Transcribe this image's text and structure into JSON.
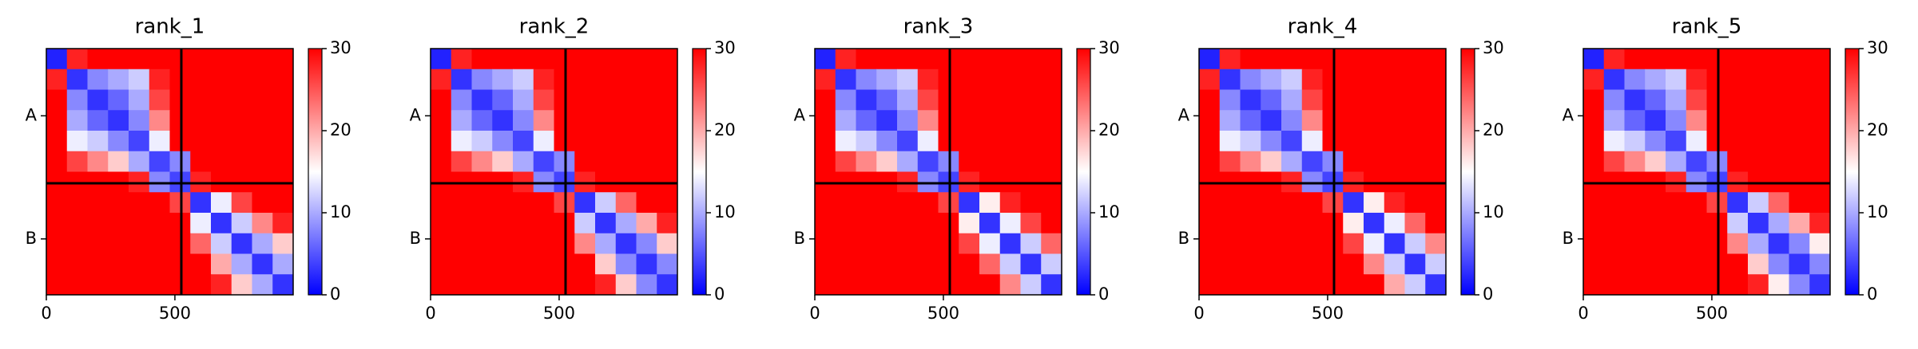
{
  "chart_data": [
    {
      "type": "heatmap",
      "title": "rank_1",
      "xlim": [
        0,
        960
      ],
      "ylim": [
        960,
        0
      ],
      "xticks": [
        0,
        500
      ],
      "yticks": [
        {
          "value": 262,
          "label": "A"
        },
        {
          "value": 742,
          "label": "B"
        }
      ],
      "chain_breaks": [
        525
      ],
      "clim": [
        0,
        30
      ],
      "cticks": [
        0,
        10,
        20,
        30
      ],
      "colormap": [
        "#0000ff",
        "#ffffff",
        "#ff0000"
      ],
      "z": [
        [
          2,
          28,
          30,
          30,
          30,
          30,
          30,
          30,
          30,
          30,
          30,
          30
        ],
        [
          28,
          3,
          8,
          10,
          12,
          28,
          30,
          30,
          30,
          30,
          30,
          30
        ],
        [
          30,
          8,
          3,
          6,
          10,
          26,
          30,
          30,
          30,
          30,
          30,
          30
        ],
        [
          30,
          10,
          6,
          3,
          8,
          22,
          30,
          30,
          30,
          30,
          30,
          30
        ],
        [
          30,
          14,
          12,
          8,
          4,
          14,
          30,
          30,
          30,
          30,
          30,
          30
        ],
        [
          30,
          26,
          22,
          18,
          10,
          4,
          8,
          30,
          30,
          30,
          30,
          30
        ],
        [
          30,
          30,
          30,
          30,
          28,
          8,
          4,
          28,
          30,
          30,
          30,
          30
        ],
        [
          30,
          30,
          30,
          30,
          30,
          30,
          26,
          3,
          14,
          26,
          30,
          30
        ],
        [
          30,
          30,
          30,
          30,
          30,
          30,
          30,
          14,
          3,
          12,
          22,
          28
        ],
        [
          30,
          30,
          30,
          30,
          30,
          30,
          30,
          24,
          12,
          3,
          10,
          18
        ],
        [
          30,
          30,
          30,
          30,
          30,
          30,
          30,
          30,
          20,
          10,
          3,
          10
        ],
        [
          30,
          30,
          30,
          30,
          30,
          30,
          30,
          30,
          28,
          18,
          10,
          3
        ]
      ]
    },
    {
      "type": "heatmap",
      "title": "rank_2",
      "xlim": [
        0,
        960
      ],
      "ylim": [
        960,
        0
      ],
      "xticks": [
        0,
        500
      ],
      "yticks": [
        {
          "value": 262,
          "label": "A"
        },
        {
          "value": 742,
          "label": "B"
        }
      ],
      "chain_breaks": [
        525
      ],
      "clim": [
        0,
        30
      ],
      "cticks": [
        0,
        10,
        20,
        30
      ],
      "colormap": [
        "#0000ff",
        "#ffffff",
        "#ff0000"
      ],
      "z": [
        [
          2,
          28,
          30,
          30,
          30,
          30,
          30,
          30,
          30,
          30,
          30,
          30
        ],
        [
          28,
          3,
          8,
          10,
          12,
          28,
          30,
          30,
          30,
          30,
          30,
          30
        ],
        [
          30,
          8,
          3,
          6,
          10,
          26,
          30,
          30,
          30,
          30,
          30,
          30
        ],
        [
          30,
          10,
          6,
          3,
          8,
          22,
          30,
          30,
          30,
          30,
          30,
          30
        ],
        [
          30,
          14,
          12,
          8,
          4,
          14,
          30,
          30,
          30,
          30,
          30,
          30
        ],
        [
          30,
          26,
          22,
          18,
          10,
          4,
          8,
          30,
          30,
          30,
          30,
          30
        ],
        [
          30,
          30,
          30,
          30,
          28,
          8,
          4,
          28,
          30,
          30,
          30,
          30
        ],
        [
          30,
          30,
          30,
          30,
          30,
          30,
          26,
          3,
          12,
          24,
          30,
          30
        ],
        [
          30,
          30,
          30,
          30,
          30,
          30,
          30,
          12,
          3,
          10,
          20,
          28
        ],
        [
          30,
          30,
          30,
          30,
          30,
          30,
          30,
          22,
          10,
          3,
          8,
          18
        ],
        [
          30,
          30,
          30,
          30,
          30,
          30,
          30,
          30,
          18,
          8,
          3,
          8
        ],
        [
          30,
          30,
          30,
          30,
          30,
          30,
          30,
          30,
          28,
          18,
          8,
          3
        ]
      ]
    },
    {
      "type": "heatmap",
      "title": "rank_3",
      "xlim": [
        0,
        960
      ],
      "ylim": [
        960,
        0
      ],
      "xticks": [
        0,
        500
      ],
      "yticks": [
        {
          "value": 262,
          "label": "A"
        },
        {
          "value": 742,
          "label": "B"
        }
      ],
      "chain_breaks": [
        525
      ],
      "clim": [
        0,
        30
      ],
      "cticks": [
        0,
        10,
        20,
        30
      ],
      "colormap": [
        "#0000ff",
        "#ffffff",
        "#ff0000"
      ],
      "z": [
        [
          2,
          28,
          30,
          30,
          30,
          30,
          30,
          30,
          30,
          30,
          30,
          30
        ],
        [
          28,
          3,
          8,
          10,
          12,
          28,
          30,
          30,
          30,
          30,
          30,
          30
        ],
        [
          30,
          8,
          3,
          6,
          10,
          26,
          30,
          30,
          30,
          30,
          30,
          30
        ],
        [
          30,
          10,
          6,
          3,
          8,
          22,
          30,
          30,
          30,
          30,
          30,
          30
        ],
        [
          30,
          14,
          12,
          8,
          4,
          14,
          30,
          30,
          30,
          30,
          30,
          30
        ],
        [
          30,
          26,
          22,
          18,
          10,
          4,
          8,
          30,
          30,
          30,
          30,
          30
        ],
        [
          30,
          30,
          30,
          30,
          28,
          8,
          4,
          28,
          30,
          30,
          30,
          30
        ],
        [
          30,
          30,
          30,
          30,
          30,
          30,
          26,
          3,
          16,
          28,
          30,
          30
        ],
        [
          30,
          30,
          30,
          30,
          30,
          30,
          30,
          16,
          3,
          14,
          26,
          30
        ],
        [
          30,
          30,
          30,
          30,
          30,
          30,
          30,
          26,
          14,
          3,
          12,
          24
        ],
        [
          30,
          30,
          30,
          30,
          30,
          30,
          30,
          30,
          24,
          12,
          3,
          12
        ],
        [
          30,
          30,
          30,
          30,
          30,
          30,
          30,
          30,
          30,
          22,
          12,
          3
        ]
      ]
    },
    {
      "type": "heatmap",
      "title": "rank_4",
      "xlim": [
        0,
        960
      ],
      "ylim": [
        960,
        0
      ],
      "xticks": [
        0,
        500
      ],
      "yticks": [
        {
          "value": 262,
          "label": "A"
        },
        {
          "value": 742,
          "label": "B"
        }
      ],
      "chain_breaks": [
        525
      ],
      "clim": [
        0,
        30
      ],
      "cticks": [
        0,
        10,
        20,
        30
      ],
      "colormap": [
        "#0000ff",
        "#ffffff",
        "#ff0000"
      ],
      "z": [
        [
          2,
          28,
          30,
          30,
          30,
          30,
          30,
          30,
          30,
          30,
          30,
          30
        ],
        [
          28,
          3,
          8,
          10,
          12,
          28,
          30,
          30,
          30,
          30,
          30,
          30
        ],
        [
          30,
          8,
          3,
          6,
          10,
          26,
          30,
          30,
          30,
          30,
          30,
          30
        ],
        [
          30,
          10,
          6,
          3,
          8,
          22,
          30,
          30,
          30,
          30,
          30,
          30
        ],
        [
          30,
          14,
          12,
          8,
          4,
          14,
          30,
          30,
          30,
          30,
          30,
          30
        ],
        [
          30,
          26,
          22,
          18,
          10,
          4,
          8,
          30,
          30,
          30,
          30,
          30
        ],
        [
          30,
          30,
          30,
          30,
          28,
          8,
          4,
          28,
          30,
          30,
          30,
          30
        ],
        [
          30,
          30,
          30,
          30,
          30,
          30,
          26,
          3,
          16,
          28,
          30,
          30
        ],
        [
          30,
          30,
          30,
          30,
          30,
          30,
          30,
          16,
          3,
          14,
          24,
          30
        ],
        [
          30,
          30,
          30,
          30,
          30,
          30,
          30,
          26,
          14,
          3,
          12,
          22
        ],
        [
          30,
          30,
          30,
          30,
          30,
          30,
          30,
          30,
          22,
          12,
          3,
          12
        ],
        [
          30,
          30,
          30,
          30,
          30,
          30,
          30,
          30,
          30,
          20,
          12,
          3
        ]
      ]
    },
    {
      "type": "heatmap",
      "title": "rank_5",
      "xlim": [
        0,
        960
      ],
      "ylim": [
        960,
        0
      ],
      "xticks": [
        0,
        500
      ],
      "yticks": [
        {
          "value": 262,
          "label": "A"
        },
        {
          "value": 742,
          "label": "B"
        }
      ],
      "chain_breaks": [
        525
      ],
      "clim": [
        0,
        30
      ],
      "cticks": [
        0,
        10,
        20,
        30
      ],
      "colormap": [
        "#0000ff",
        "#ffffff",
        "#ff0000"
      ],
      "z": [
        [
          2,
          28,
          30,
          30,
          30,
          30,
          30,
          30,
          30,
          30,
          30,
          30
        ],
        [
          28,
          3,
          8,
          10,
          12,
          28,
          30,
          30,
          30,
          30,
          30,
          30
        ],
        [
          30,
          8,
          3,
          6,
          10,
          26,
          30,
          30,
          30,
          30,
          30,
          30
        ],
        [
          30,
          10,
          6,
          3,
          8,
          22,
          30,
          30,
          30,
          30,
          30,
          30
        ],
        [
          30,
          14,
          12,
          8,
          4,
          14,
          30,
          30,
          30,
          30,
          30,
          30
        ],
        [
          30,
          26,
          22,
          18,
          10,
          4,
          8,
          30,
          30,
          30,
          30,
          30
        ],
        [
          30,
          30,
          30,
          30,
          28,
          8,
          4,
          28,
          30,
          30,
          30,
          30
        ],
        [
          30,
          30,
          30,
          30,
          30,
          30,
          26,
          3,
          12,
          24,
          30,
          30
        ],
        [
          30,
          30,
          30,
          30,
          30,
          30,
          30,
          12,
          3,
          10,
          20,
          28
        ],
        [
          30,
          30,
          30,
          30,
          30,
          30,
          30,
          22,
          10,
          3,
          8,
          16
        ],
        [
          30,
          30,
          30,
          30,
          30,
          30,
          30,
          30,
          18,
          8,
          3,
          8
        ],
        [
          30,
          30,
          30,
          30,
          30,
          30,
          30,
          30,
          28,
          16,
          8,
          3
        ]
      ]
    }
  ]
}
